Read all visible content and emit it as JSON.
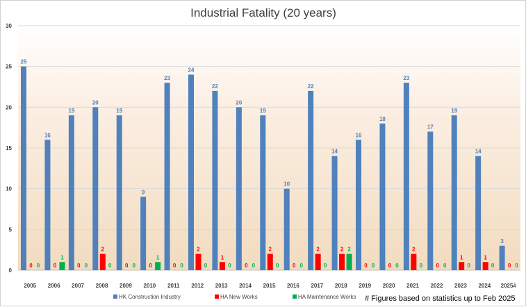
{
  "chart_data": {
    "type": "bar",
    "title": "Industrial Fatality (20 years)",
    "xlabel": "",
    "ylabel": "",
    "ylim": [
      0,
      30
    ],
    "yticks": [
      0,
      5,
      10,
      15,
      20,
      25,
      30
    ],
    "grid": true,
    "legend": "bottom",
    "categories": [
      "2005",
      "2006",
      "2007",
      "2008",
      "2009",
      "2010",
      "2011",
      "2012",
      "2013",
      "2014",
      "2015",
      "2016",
      "2017",
      "2018",
      "2019",
      "2020",
      "2021",
      "2022",
      "2023",
      "2024",
      "2025#"
    ],
    "series": [
      {
        "name": "HK Construction Industry",
        "color": "#4f81bd",
        "label_color": "#4f81bd",
        "values": [
          25,
          16,
          19,
          20,
          19,
          9,
          23,
          24,
          22,
          20,
          19,
          10,
          22,
          14,
          16,
          18,
          23,
          17,
          19,
          14,
          3
        ]
      },
      {
        "name": "HA New Works",
        "color": "#ff0000",
        "label_color": "#ff0000",
        "values": [
          0,
          0,
          0,
          2,
          0,
          0,
          0,
          2,
          1,
          0,
          2,
          0,
          2,
          2,
          0,
          0,
          2,
          0,
          1,
          1,
          0
        ]
      },
      {
        "name": "HA Maintenance Works",
        "color": "#00b050",
        "label_color": "#00b050",
        "values": [
          0,
          1,
          0,
          0,
          0,
          1,
          0,
          0,
          0,
          0,
          0,
          0,
          0,
          2,
          0,
          0,
          0,
          0,
          0,
          0,
          0
        ]
      }
    ],
    "footnote": "# Figures based on statistics up to Feb 2025"
  }
}
